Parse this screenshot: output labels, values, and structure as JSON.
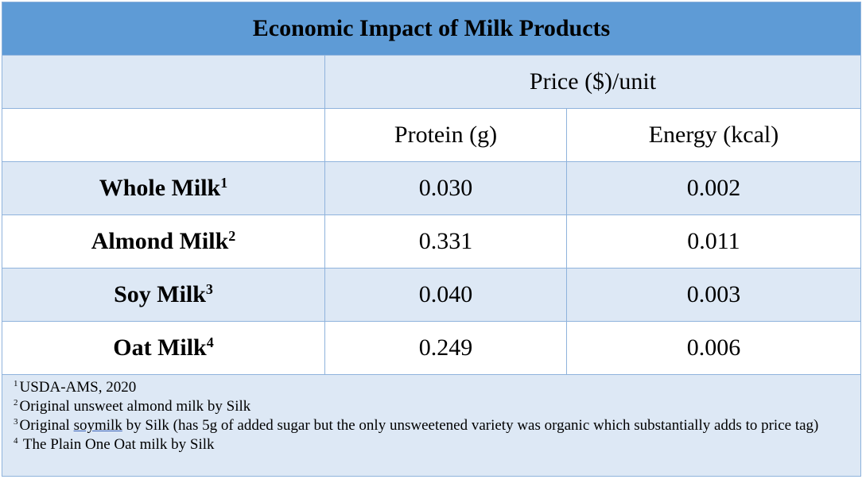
{
  "title": "Economic Impact of Milk Products",
  "header": {
    "group": "Price ($)/unit",
    "col1": "Protein (g)",
    "col2": "Energy (kcal)"
  },
  "rows": [
    {
      "name": "Whole Milk",
      "ref": "1",
      "protein": "0.030",
      "energy": "0.002"
    },
    {
      "name": "Almond Milk",
      "ref": "2",
      "protein": "0.331",
      "energy": "0.011"
    },
    {
      "name": "Soy Milk",
      "ref": "3",
      "protein": "0.040",
      "energy": "0.003"
    },
    {
      "name": "Oat Milk",
      "ref": "4",
      "protein": "0.249",
      "energy": "0.006"
    }
  ],
  "notes": [
    {
      "ref": "1",
      "text": "USDA-AMS, 2020"
    },
    {
      "ref": "2",
      "text": "Original unsweet almond milk by Silk"
    },
    {
      "ref": "3",
      "pre": "Original ",
      "link": "soymilk",
      "text": " by Silk (has 5g of added sugar but the only unsweetened variety was organic which substantially adds to price tag)"
    },
    {
      "ref": "4",
      "text": " The Plain One Oat milk by Silk"
    }
  ],
  "colors": {
    "title_bg": "#5e9bd6",
    "light_bg": "#dde8f5",
    "border": "#8fb3dc"
  }
}
